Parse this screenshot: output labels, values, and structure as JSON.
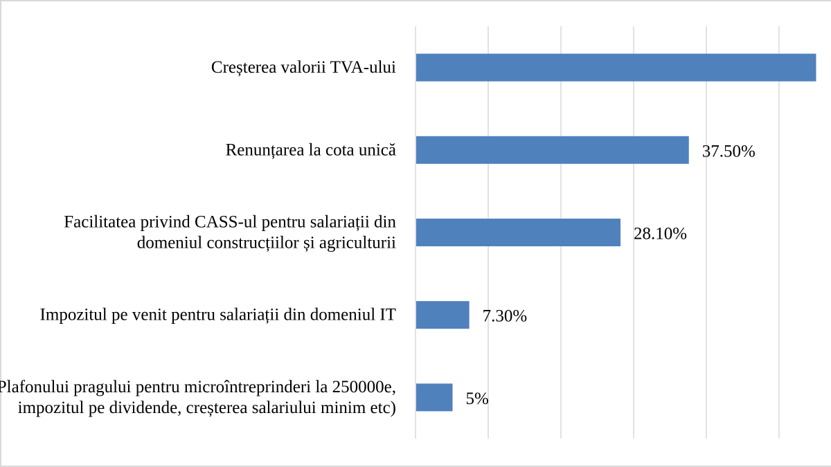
{
  "chart_data": {
    "type": "bar",
    "orientation": "horizontal",
    "categories": [
      [
        "Creșterea valorii TVA-ului"
      ],
      [
        "Renunțarea la cota unică"
      ],
      [
        "Facilitatea privind CASS-ul pentru salariații din",
        "domeniul construcțiilor și agriculturii"
      ],
      [
        "Impozitul pe venit pentru salariații din domeniul IT"
      ],
      [
        "Plafonului pragului pentru microîntreprinderi la 250000e,",
        "impozitul pe dividende, creșterea salariului minim etc)"
      ]
    ],
    "values": [
      null,
      37.5,
      28.1,
      7.3,
      5
    ],
    "data_labels": [
      "",
      "37.50%",
      "28.10%",
      "7.30%",
      "5%"
    ],
    "xlim": [
      0,
      55
    ],
    "grid": true,
    "colors": {
      "bar": "#4f81bd",
      "grid": "#d9d9d9"
    }
  }
}
